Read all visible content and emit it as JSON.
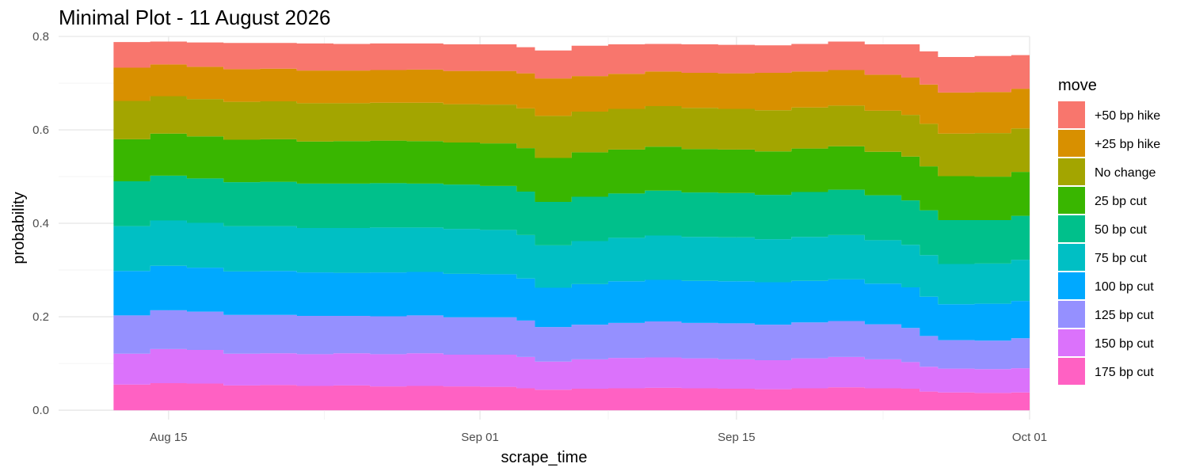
{
  "chart_data": {
    "type": "area",
    "stacked": true,
    "step": true,
    "title": "Minimal Plot - 11 August 2026",
    "xlabel": "scrape_time",
    "ylabel": "probability",
    "x_range": [
      "2026-08-09",
      "2026-10-01"
    ],
    "ylim": [
      -0.02,
      0.8
    ],
    "x_ticks": [
      {
        "date": "2026-08-15",
        "label": "Aug 15"
      },
      {
        "date": "2026-09-01",
        "label": "Sep 01"
      },
      {
        "date": "2026-09-15",
        "label": "Sep 15"
      },
      {
        "date": "2026-10-01",
        "label": "Oct 01"
      }
    ],
    "y_ticks": [
      0.0,
      0.2,
      0.4,
      0.6,
      0.8
    ],
    "y_tick_labels": [
      "0.0",
      "0.2",
      "0.4",
      "0.6",
      "0.8"
    ],
    "grid": true,
    "legend_position": "right",
    "legend_title": "move",
    "legend_order": [
      "+50 bp hike",
      "+25 bp hike",
      "No change",
      "25 bp cut",
      "50 bp cut",
      "75 bp cut",
      "100 bp cut",
      "125 bp cut",
      "150 bp cut",
      "175 bp cut"
    ],
    "x": [
      "2026-08-12",
      "2026-08-14",
      "2026-08-16",
      "2026-08-18",
      "2026-08-20",
      "2026-08-22",
      "2026-08-24",
      "2026-08-26",
      "2026-08-28",
      "2026-08-30",
      "2026-09-01",
      "2026-09-03",
      "2026-09-04",
      "2026-09-06",
      "2026-09-08",
      "2026-09-10",
      "2026-09-12",
      "2026-09-14",
      "2026-09-16",
      "2026-09-18",
      "2026-09-20",
      "2026-09-22",
      "2026-09-24",
      "2026-09-25",
      "2026-09-26",
      "2026-09-28",
      "2026-09-30"
    ],
    "series": [
      {
        "name": "175 bp cut",
        "color": "#FF61C3",
        "values": [
          0.055,
          0.058,
          0.057,
          0.053,
          0.054,
          0.052,
          0.053,
          0.051,
          0.052,
          0.051,
          0.05,
          0.047,
          0.044,
          0.046,
          0.047,
          0.048,
          0.047,
          0.046,
          0.045,
          0.047,
          0.049,
          0.047,
          0.046,
          0.04,
          0.038,
          0.037,
          0.038
        ]
      },
      {
        "name": "150 bp cut",
        "color": "#DB72FB",
        "values": [
          0.066,
          0.073,
          0.072,
          0.068,
          0.068,
          0.068,
          0.069,
          0.069,
          0.07,
          0.068,
          0.069,
          0.067,
          0.06,
          0.063,
          0.065,
          0.065,
          0.064,
          0.063,
          0.062,
          0.064,
          0.065,
          0.062,
          0.057,
          0.053,
          0.051,
          0.051,
          0.052
        ]
      },
      {
        "name": "125 bp cut",
        "color": "#9590FF",
        "values": [
          0.082,
          0.083,
          0.082,
          0.083,
          0.082,
          0.082,
          0.08,
          0.081,
          0.081,
          0.08,
          0.08,
          0.078,
          0.074,
          0.074,
          0.075,
          0.077,
          0.076,
          0.077,
          0.076,
          0.077,
          0.077,
          0.075,
          0.073,
          0.066,
          0.061,
          0.061,
          0.064
        ]
      },
      {
        "name": "100 bp cut",
        "color": "#00A9FF",
        "values": [
          0.095,
          0.095,
          0.094,
          0.093,
          0.094,
          0.093,
          0.092,
          0.094,
          0.093,
          0.093,
          0.092,
          0.09,
          0.084,
          0.087,
          0.089,
          0.089,
          0.09,
          0.09,
          0.091,
          0.089,
          0.089,
          0.087,
          0.087,
          0.084,
          0.077,
          0.079,
          0.08
        ]
      },
      {
        "name": "75 bp cut",
        "color": "#00BFC4",
        "values": [
          0.096,
          0.097,
          0.096,
          0.097,
          0.096,
          0.095,
          0.096,
          0.096,
          0.095,
          0.096,
          0.095,
          0.093,
          0.091,
          0.092,
          0.093,
          0.095,
          0.094,
          0.094,
          0.092,
          0.094,
          0.095,
          0.093,
          0.091,
          0.089,
          0.086,
          0.086,
          0.088
        ]
      },
      {
        "name": "50 bp cut",
        "color": "#00C08B",
        "values": [
          0.096,
          0.096,
          0.095,
          0.094,
          0.095,
          0.095,
          0.095,
          0.095,
          0.094,
          0.095,
          0.094,
          0.093,
          0.093,
          0.095,
          0.095,
          0.096,
          0.095,
          0.095,
          0.095,
          0.096,
          0.097,
          0.096,
          0.095,
          0.096,
          0.094,
          0.093,
          0.094
        ]
      },
      {
        "name": "25 bp cut",
        "color": "#39B600",
        "values": [
          0.09,
          0.09,
          0.09,
          0.091,
          0.091,
          0.09,
          0.091,
          0.091,
          0.091,
          0.09,
          0.091,
          0.093,
          0.094,
          0.095,
          0.094,
          0.094,
          0.093,
          0.093,
          0.093,
          0.093,
          0.093,
          0.093,
          0.094,
          0.094,
          0.094,
          0.093,
          0.094
        ]
      },
      {
        "name": "No change",
        "color": "#A3A500",
        "values": [
          0.082,
          0.08,
          0.08,
          0.081,
          0.081,
          0.082,
          0.081,
          0.081,
          0.082,
          0.082,
          0.083,
          0.085,
          0.09,
          0.087,
          0.087,
          0.087,
          0.088,
          0.087,
          0.088,
          0.088,
          0.087,
          0.088,
          0.089,
          0.091,
          0.091,
          0.093,
          0.093
        ]
      },
      {
        "name": "+25 bp hike",
        "color": "#D89000",
        "values": [
          0.071,
          0.068,
          0.069,
          0.07,
          0.07,
          0.07,
          0.07,
          0.07,
          0.071,
          0.071,
          0.072,
          0.075,
          0.08,
          0.076,
          0.075,
          0.074,
          0.075,
          0.076,
          0.08,
          0.077,
          0.076,
          0.077,
          0.08,
          0.084,
          0.088,
          0.088,
          0.085
        ]
      },
      {
        "name": "+50 bp hike",
        "color": "#F8766D",
        "values": [
          0.055,
          0.049,
          0.052,
          0.056,
          0.055,
          0.058,
          0.057,
          0.057,
          0.056,
          0.057,
          0.057,
          0.056,
          0.06,
          0.065,
          0.063,
          0.059,
          0.061,
          0.061,
          0.059,
          0.059,
          0.061,
          0.065,
          0.071,
          0.071,
          0.076,
          0.077,
          0.072
        ]
      }
    ]
  }
}
